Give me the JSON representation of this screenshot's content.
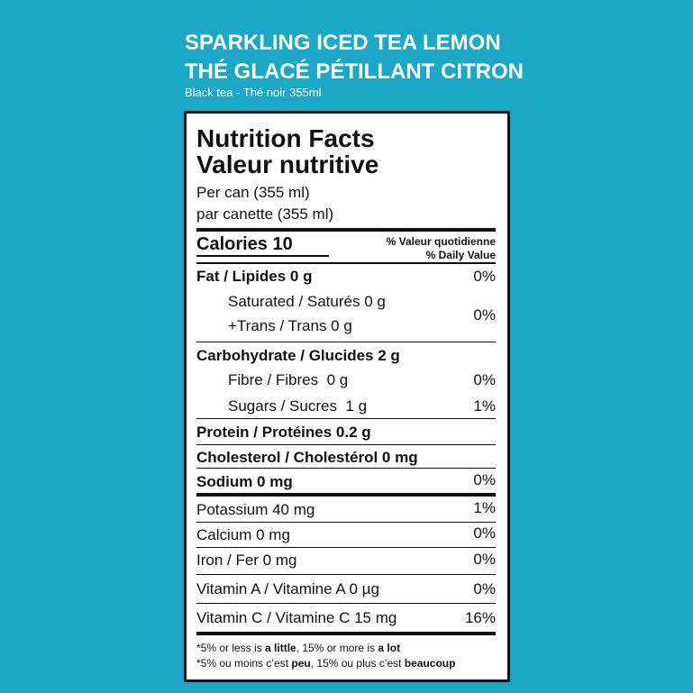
{
  "header": {
    "title_en": "SPARKLING ICED TEA LEMON",
    "title_fr": "THÉ GLACÉ PÉTILLANT CITRON",
    "subtitle": "Black tea - Thé noir 355ml"
  },
  "label": {
    "title_en": "Nutrition Facts",
    "title_fr": "Valeur nutritive",
    "serving_en": "Per can (355 ml)",
    "serving_fr": "par canette (355 ml)",
    "calories": "Calories 10",
    "dv_heading_fr": "% Valeur quotidienne",
    "dv_heading_en": "% Daily Value",
    "rows": [
      {
        "label": "Fat / Lipides 0 g",
        "dv": "0%"
      },
      {
        "label": "Saturated / Saturés 0 g"
      },
      {
        "label": "+Trans / Trans 0 g",
        "dv": "0%"
      },
      {
        "label": "Carbohydrate / Glucides 2 g"
      },
      {
        "label": "Fibre / Fibres  0 g",
        "dv": "0%"
      },
      {
        "label": "Sugars / Sucres  1 g",
        "dv": "1%"
      },
      {
        "label": "Protein / Protéines 0.2 g"
      },
      {
        "label": "Cholesterol / Cholestérol 0 mg"
      },
      {
        "label": "Sodium 0 mg",
        "dv": "0%"
      },
      {
        "label": "Potassium 40 mg",
        "dv": "1%"
      },
      {
        "label": "Calcium 0 mg",
        "dv": "0%"
      },
      {
        "label": "Iron / Fer 0 mg",
        "dv": "0%"
      },
      {
        "label": "Vitamin A / Vitamine A 0 µg",
        "dv": "0%"
      },
      {
        "label": "Vitamin C / Vitamine C 15 mg",
        "dv": "16%"
      }
    ],
    "footnotes": [
      [
        "*5% or less is ",
        "a little",
        ", 15% or more is ",
        "a lot"
      ],
      [
        "*5% ou moins c’est ",
        "peu",
        ", 15% ou plus c’est ",
        "beaucoup"
      ]
    ]
  }
}
